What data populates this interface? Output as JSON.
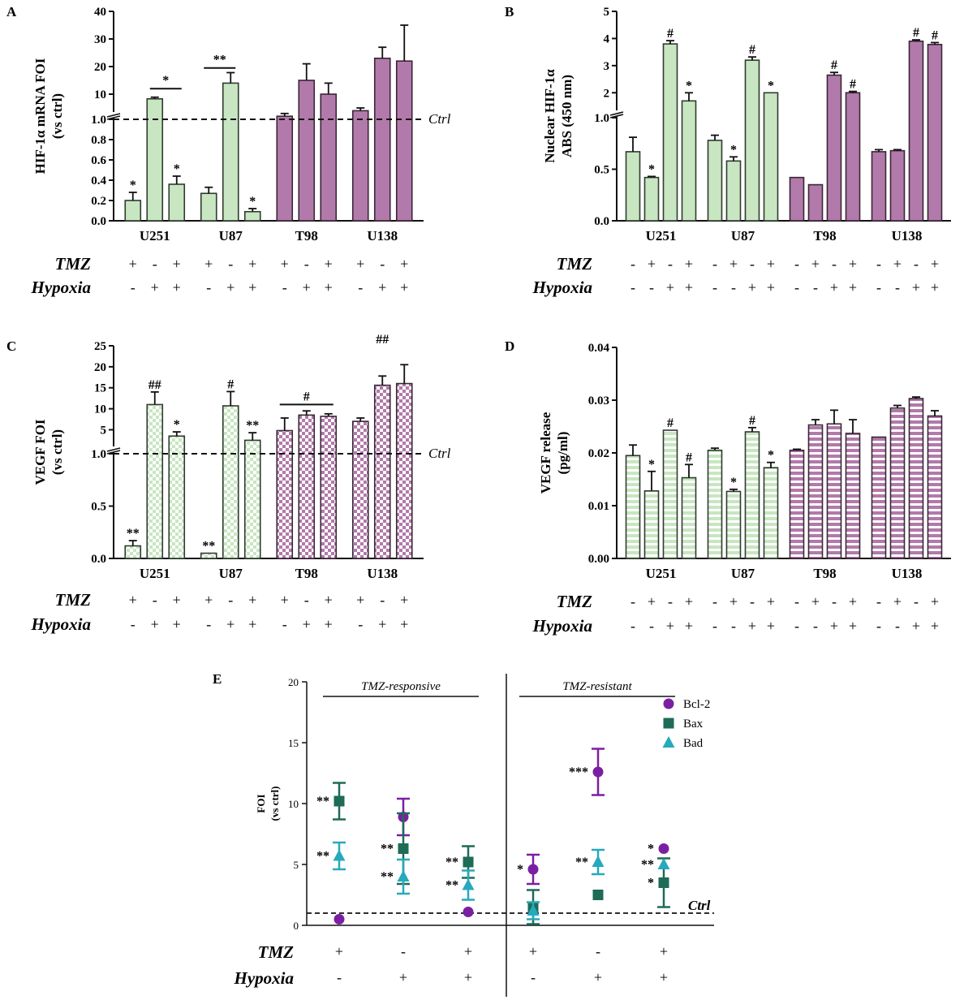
{
  "colors": {
    "green": "#c8e6c1",
    "green_edge": "#2f3b2f",
    "purple": "#b27aaa",
    "purple_edge": "#3a2637",
    "bcl2": "#7b1fa2",
    "bax": "#1e6b56",
    "bad": "#27a9bd"
  },
  "row_labels": {
    "tmz": "TMZ",
    "hypoxia": "Hypoxia",
    "ctrl": "Ctrl"
  },
  "chart_data": [
    {
      "id": "A",
      "letter": "A",
      "type": "bar",
      "style": "solid",
      "ylabel_lines": [
        "HIF-1α mRNA FOI",
        "(vs ctrl)"
      ],
      "y_axis": "broken",
      "lower_range": [
        0,
        1.0
      ],
      "upper_range": [
        0,
        40
      ],
      "lower_ticks": [
        "0.0",
        "0.2",
        "0.4",
        "0.6",
        "0.8",
        "1.0"
      ],
      "upper_ticks": [
        "10",
        "20",
        "30",
        "40"
      ],
      "categories": [
        "U251",
        "U87",
        "T98",
        "U138"
      ],
      "ctrl_line": true,
      "tmz": [
        "+",
        "-",
        "+",
        "+",
        "-",
        "+",
        "+",
        "-",
        "+",
        "+",
        "-",
        "+"
      ],
      "hypoxia": [
        "-",
        "+",
        "+",
        "-",
        "+",
        "+",
        "-",
        "+",
        "+",
        "-",
        "+",
        "+"
      ],
      "bars": [
        {
          "group": 0,
          "value": 0.2,
          "err": 0.08,
          "sig": "*"
        },
        {
          "group": 0,
          "value": 8.3,
          "err": 0.6,
          "sig": ""
        },
        {
          "group": 0,
          "value": 0.36,
          "err": 0.08,
          "sig": "*"
        },
        {
          "group": 1,
          "value": 0.27,
          "err": 0.06,
          "sig": ""
        },
        {
          "group": 1,
          "value": 14.0,
          "err": 3.8,
          "sig": ""
        },
        {
          "group": 1,
          "value": 0.09,
          "err": 0.03,
          "sig": "*"
        },
        {
          "group": 2,
          "value": 2.0,
          "err": 1.0,
          "sig": ""
        },
        {
          "group": 2,
          "value": 15.0,
          "err": 6.0,
          "sig": ""
        },
        {
          "group": 2,
          "value": 10.0,
          "err": 4.0,
          "sig": ""
        },
        {
          "group": 3,
          "value": 4.0,
          "err": 1.0,
          "sig": ""
        },
        {
          "group": 3,
          "value": 23.0,
          "err": 4.0,
          "sig": ""
        },
        {
          "group": 3,
          "value": 22.0,
          "err": 13.0,
          "sig": ""
        }
      ],
      "brackets": [
        {
          "from": 1,
          "to": 2,
          "label": "*",
          "value": 12.0
        },
        {
          "from": 3,
          "to": 4,
          "label": "**",
          "value": 19.5
        }
      ]
    },
    {
      "id": "B",
      "letter": "B",
      "type": "bar",
      "style": "solid",
      "ylabel_lines": [
        "Nuclear HIF-1α",
        "ABS (450 nm)"
      ],
      "y_axis": "broken",
      "lower_range": [
        0,
        1.0
      ],
      "upper_range": [
        1,
        5
      ],
      "lower_ticks": [
        "0.0",
        "0.5",
        "1.0"
      ],
      "upper_ticks": [
        "2",
        "3",
        "4",
        "5"
      ],
      "categories": [
        "U251",
        "U87",
        "T98",
        "U138"
      ],
      "ctrl_line": false,
      "tmz": [
        "-",
        "+",
        "-",
        "+",
        "-",
        "+",
        "-",
        "+",
        "-",
        "+",
        "-",
        "+",
        "-",
        "+",
        "-",
        "+"
      ],
      "hypoxia": [
        "-",
        "-",
        "+",
        "+",
        "-",
        "-",
        "+",
        "+",
        "-",
        "-",
        "+",
        "+",
        "-",
        "-",
        "+",
        "+"
      ],
      "bars": [
        {
          "group": 0,
          "value": 0.67,
          "err": 0.14,
          "sig": ""
        },
        {
          "group": 0,
          "value": 0.42,
          "err": 0.01,
          "sig": "*"
        },
        {
          "group": 0,
          "value": 3.8,
          "err": 0.12,
          "sig": "#"
        },
        {
          "group": 0,
          "value": 1.7,
          "err": 0.3,
          "sig": "*"
        },
        {
          "group": 1,
          "value": 0.78,
          "err": 0.05,
          "sig": ""
        },
        {
          "group": 1,
          "value": 0.58,
          "err": 0.04,
          "sig": "*"
        },
        {
          "group": 1,
          "value": 3.2,
          "err": 0.12,
          "sig": "#"
        },
        {
          "group": 1,
          "value": 2.0,
          "err": 0.0,
          "sig": "*"
        },
        {
          "group": 2,
          "value": 0.42,
          "err": 0.0,
          "sig": ""
        },
        {
          "group": 2,
          "value": 0.35,
          "err": 0.0,
          "sig": ""
        },
        {
          "group": 2,
          "value": 2.65,
          "err": 0.1,
          "sig": "#"
        },
        {
          "group": 2,
          "value": 2.0,
          "err": 0.05,
          "sig": "#"
        },
        {
          "group": 3,
          "value": 0.67,
          "err": 0.02,
          "sig": ""
        },
        {
          "group": 3,
          "value": 0.68,
          "err": 0.01,
          "sig": ""
        },
        {
          "group": 3,
          "value": 3.9,
          "err": 0.05,
          "sig": "#"
        },
        {
          "group": 3,
          "value": 3.78,
          "err": 0.07,
          "sig": "#"
        }
      ],
      "brackets": []
    },
    {
      "id": "C",
      "letter": "C",
      "type": "bar",
      "style": "check",
      "ylabel_lines": [
        "VEGF FOI",
        "(vs ctrl)"
      ],
      "y_axis": "broken",
      "lower_range": [
        0,
        1.0
      ],
      "upper_range": [
        0,
        25
      ],
      "lower_ticks": [
        "0.0",
        "0.5",
        "1.0"
      ],
      "upper_ticks": [
        "5",
        "10",
        "15",
        "20",
        "25"
      ],
      "categories": [
        "U251",
        "U87",
        "T98",
        "U138"
      ],
      "ctrl_line": true,
      "tmz": [
        "+",
        "-",
        "+",
        "+",
        "-",
        "+",
        "+",
        "-",
        "+",
        "+",
        "-",
        "+"
      ],
      "hypoxia": [
        "-",
        "+",
        "+",
        "-",
        "+",
        "+",
        "-",
        "+",
        "+",
        "-",
        "+",
        "+"
      ],
      "bars": [
        {
          "group": 0,
          "value": 0.12,
          "err": 0.05,
          "sig": "**"
        },
        {
          "group": 0,
          "value": 11.0,
          "err": 3.0,
          "sig": "##"
        },
        {
          "group": 0,
          "value": 3.5,
          "err": 1.0,
          "sig": "*"
        },
        {
          "group": 1,
          "value": 0.05,
          "err": 0.0,
          "sig": "**"
        },
        {
          "group": 1,
          "value": 10.7,
          "err": 3.4,
          "sig": "#"
        },
        {
          "group": 1,
          "value": 2.5,
          "err": 1.8,
          "sig": "**"
        },
        {
          "group": 2,
          "value": 4.8,
          "err": 3.0,
          "sig": ""
        },
        {
          "group": 2,
          "value": 8.5,
          "err": 1.0,
          "sig": ""
        },
        {
          "group": 2,
          "value": 8.2,
          "err": 0.6,
          "sig": ""
        },
        {
          "group": 3,
          "value": 7.0,
          "err": 0.8,
          "sig": ""
        },
        {
          "group": 3,
          "value": 15.6,
          "err": 2.2,
          "sig": ""
        },
        {
          "group": 3,
          "value": 16.0,
          "err": 4.5,
          "sig": ""
        }
      ],
      "brackets": [
        {
          "from": 6,
          "to": 8,
          "label": "#",
          "value": 11.0
        },
        {
          "from": 9,
          "to": 11,
          "label": "##",
          "value": null
        }
      ]
    },
    {
      "id": "D",
      "letter": "D",
      "type": "bar",
      "style": "stripe",
      "ylabel_lines": [
        "VEGF release",
        "(pg/ml)"
      ],
      "y_axis": "linear",
      "range": [
        0,
        0.04
      ],
      "ticks": [
        "0.00",
        "0.01",
        "0.02",
        "0.03",
        "0.04"
      ],
      "categories": [
        "U251",
        "U87",
        "T98",
        "U138"
      ],
      "ctrl_line": false,
      "tmz": [
        "-",
        "+",
        "-",
        "+",
        "-",
        "+",
        "-",
        "+",
        "-",
        "+",
        "-",
        "+",
        "-",
        "+",
        "-",
        "+"
      ],
      "hypoxia": [
        "-",
        "-",
        "+",
        "+",
        "-",
        "-",
        "+",
        "+",
        "-",
        "-",
        "+",
        "+",
        "-",
        "-",
        "+",
        "+"
      ],
      "bars": [
        {
          "group": 0,
          "value": 0.0195,
          "err": 0.002,
          "sig": ""
        },
        {
          "group": 0,
          "value": 0.0128,
          "err": 0.0037,
          "sig": "*"
        },
        {
          "group": 0,
          "value": 0.0243,
          "err": 0.0,
          "sig": "#"
        },
        {
          "group": 0,
          "value": 0.0153,
          "err": 0.0025,
          "sig": "#"
        },
        {
          "group": 1,
          "value": 0.0205,
          "err": 0.0004,
          "sig": ""
        },
        {
          "group": 1,
          "value": 0.0127,
          "err": 0.0004,
          "sig": "*"
        },
        {
          "group": 1,
          "value": 0.024,
          "err": 0.0008,
          "sig": "#"
        },
        {
          "group": 1,
          "value": 0.0172,
          "err": 0.001,
          "sig": "*"
        },
        {
          "group": 2,
          "value": 0.0205,
          "err": 0.0002,
          "sig": ""
        },
        {
          "group": 2,
          "value": 0.0253,
          "err": 0.001,
          "sig": ""
        },
        {
          "group": 2,
          "value": 0.0255,
          "err": 0.0026,
          "sig": ""
        },
        {
          "group": 2,
          "value": 0.0237,
          "err": 0.0026,
          "sig": ""
        },
        {
          "group": 3,
          "value": 0.023,
          "err": 0.0,
          "sig": ""
        },
        {
          "group": 3,
          "value": 0.0285,
          "err": 0.0005,
          "sig": ""
        },
        {
          "group": 3,
          "value": 0.0303,
          "err": 0.0003,
          "sig": ""
        },
        {
          "group": 3,
          "value": 0.027,
          "err": 0.001,
          "sig": ""
        }
      ],
      "brackets": []
    },
    {
      "id": "E",
      "letter": "E",
      "type": "scatter",
      "ylabel_lines": [
        "FOI",
        "(vs ctrl)"
      ],
      "range": [
        0,
        20
      ],
      "ticks": [
        "0",
        "5",
        "10",
        "15",
        "20"
      ],
      "ctrl_value": 1.0,
      "group_labels": [
        "TMZ-responsive",
        "TMZ-resistant"
      ],
      "tmz": [
        "+",
        "-",
        "+",
        "+",
        "-",
        "+"
      ],
      "hypoxia": [
        "-",
        "+",
        "+",
        "-",
        "+",
        "+"
      ],
      "series": [
        {
          "name": "Bcl-2",
          "marker": "circle",
          "color": "#7b1fa2",
          "points": [
            {
              "x": 0,
              "y": 0.5,
              "err": 0.0,
              "sig": ""
            },
            {
              "x": 1,
              "y": 8.9,
              "err": 1.5,
              "sig": ""
            },
            {
              "x": 2,
              "y": 1.1,
              "err": 0.0,
              "sig": ""
            },
            {
              "x": 3,
              "y": 4.6,
              "err": 1.2,
              "sig": "*"
            },
            {
              "x": 4,
              "y": 12.6,
              "err": 1.9,
              "sig": "***"
            },
            {
              "x": 5,
              "y": 6.3,
              "err": 0.0,
              "sig": "*"
            }
          ]
        },
        {
          "name": "Bax",
          "marker": "square",
          "color": "#1e6b56",
          "points": [
            {
              "x": 0,
              "y": 10.2,
              "err": 1.5,
              "sig": "**"
            },
            {
              "x": 1,
              "y": 6.3,
              "err": 2.9,
              "sig": "**"
            },
            {
              "x": 2,
              "y": 5.2,
              "err": 1.3,
              "sig": "**"
            },
            {
              "x": 3,
              "y": 1.5,
              "err": 1.4,
              "sig": ""
            },
            {
              "x": 4,
              "y": 2.5,
              "err": 0.0,
              "sig": ""
            },
            {
              "x": 5,
              "y": 3.5,
              "err": 2.0,
              "sig": "*"
            }
          ]
        },
        {
          "name": "Bad",
          "marker": "triangle",
          "color": "#27a9bd",
          "points": [
            {
              "x": 0,
              "y": 5.7,
              "err": 1.1,
              "sig": "**"
            },
            {
              "x": 1,
              "y": 4.0,
              "err": 1.4,
              "sig": "**"
            },
            {
              "x": 2,
              "y": 3.3,
              "err": 1.2,
              "sig": "**"
            },
            {
              "x": 3,
              "y": 1.2,
              "err": 0.7,
              "sig": ""
            },
            {
              "x": 4,
              "y": 5.2,
              "err": 1.0,
              "sig": "**"
            },
            {
              "x": 5,
              "y": 5.0,
              "err": 0.0,
              "sig": "**"
            }
          ]
        }
      ]
    }
  ]
}
